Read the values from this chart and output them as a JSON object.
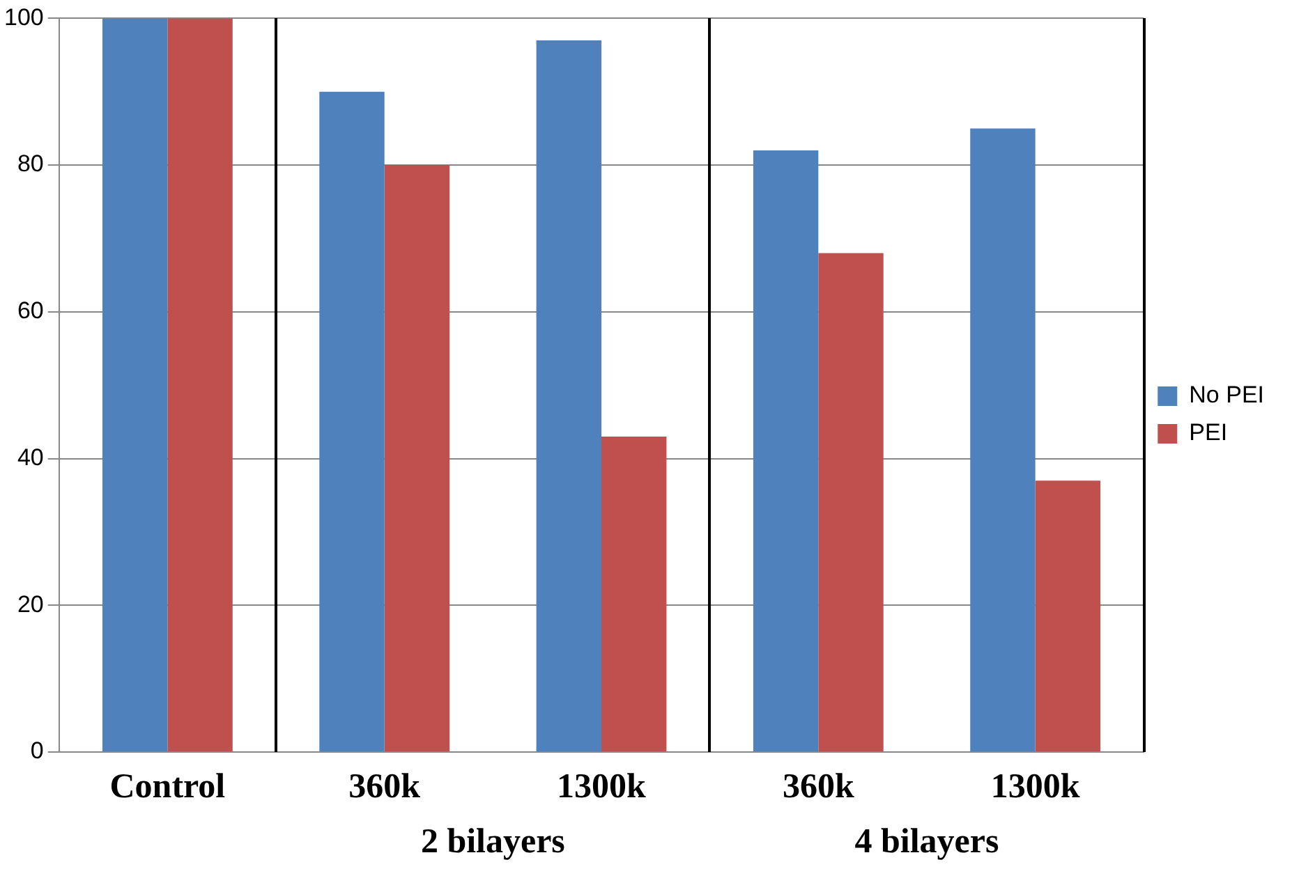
{
  "chart_data": {
    "type": "bar",
    "categories": [
      "Control",
      "360k",
      "1300k",
      "360k",
      "1300k"
    ],
    "series": [
      {
        "name": "No PEI",
        "color": "#4f81bd",
        "values": [
          100,
          90,
          97,
          82,
          85
        ]
      },
      {
        "name": "PEI",
        "color": "#c0504d",
        "values": [
          100,
          80,
          43,
          68,
          37
        ]
      }
    ],
    "ylim": [
      0,
      100
    ],
    "yticks": [
      0,
      20,
      40,
      60,
      80,
      100
    ],
    "grid": "y",
    "legend": "right",
    "annotations": [
      "2 bilayers",
      "4 bilayers"
    ]
  }
}
